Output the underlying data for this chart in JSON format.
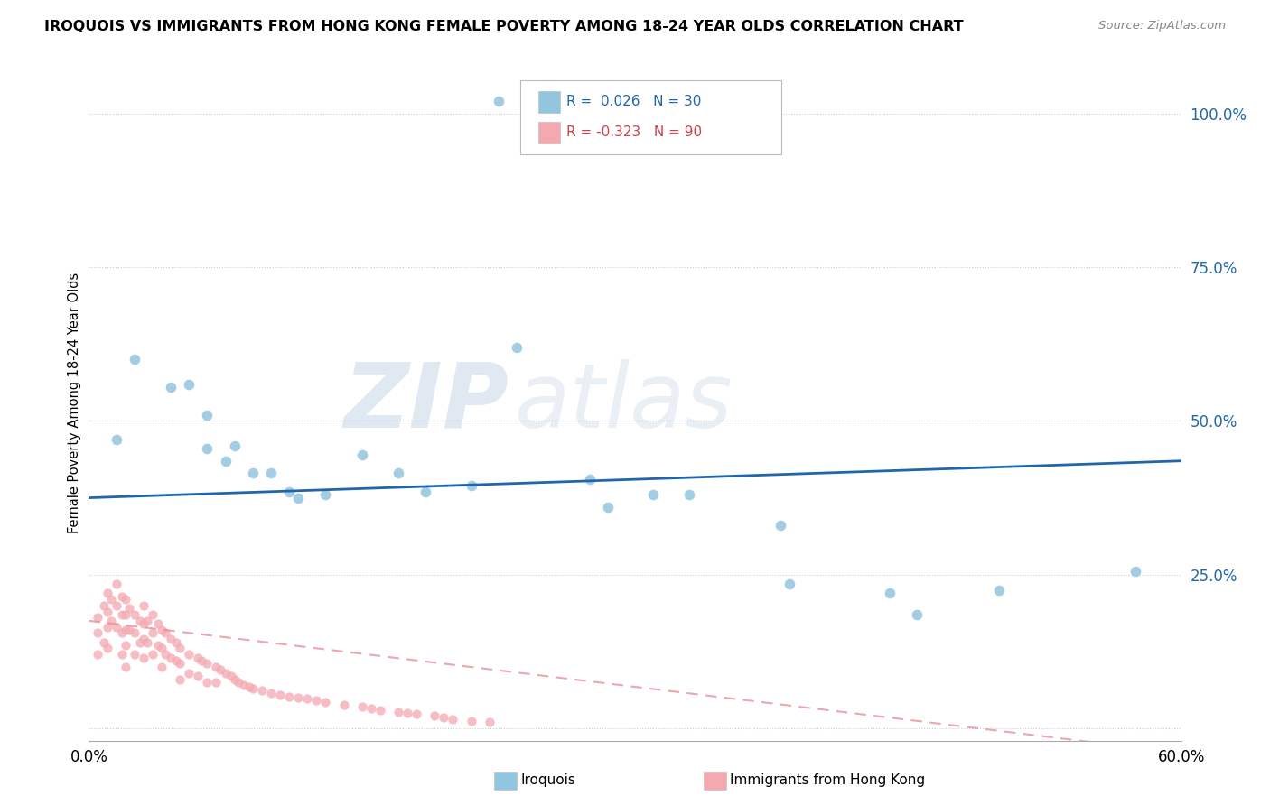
{
  "title": "IROQUOIS VS IMMIGRANTS FROM HONG KONG FEMALE POVERTY AMONG 18-24 YEAR OLDS CORRELATION CHART",
  "source": "Source: ZipAtlas.com",
  "ylabel": "Female Poverty Among 18-24 Year Olds",
  "xlim": [
    0.0,
    0.6
  ],
  "ylim": [
    -0.02,
    1.08
  ],
  "r_iroquois": 0.026,
  "n_iroquois": 30,
  "r_hk": -0.323,
  "n_hk": 90,
  "color_iroquois": "#92c5de",
  "color_hk": "#f4a9b0",
  "color_trend_iroquois": "#2166ac",
  "color_trend_hk": "#e8909a",
  "watermark_zip": "ZIP",
  "watermark_atlas": "atlas",
  "iroquois_x": [
    0.015,
    0.025,
    0.045,
    0.055,
    0.065,
    0.065,
    0.075,
    0.08,
    0.09,
    0.1,
    0.11,
    0.115,
    0.13,
    0.15,
    0.17,
    0.185,
    0.21,
    0.225,
    0.235,
    0.27,
    0.275,
    0.285,
    0.31,
    0.33,
    0.38,
    0.385,
    0.44,
    0.455,
    0.5,
    0.575
  ],
  "iroquois_y": [
    0.47,
    0.6,
    0.555,
    0.56,
    0.51,
    0.455,
    0.435,
    0.46,
    0.415,
    0.415,
    0.385,
    0.375,
    0.38,
    0.445,
    0.415,
    0.385,
    0.395,
    1.02,
    0.62,
    1.0,
    0.405,
    0.36,
    0.38,
    0.38,
    0.33,
    0.235,
    0.22,
    0.185,
    0.225,
    0.255
  ],
  "hk_x": [
    0.005,
    0.005,
    0.005,
    0.008,
    0.008,
    0.01,
    0.01,
    0.01,
    0.01,
    0.012,
    0.012,
    0.015,
    0.015,
    0.015,
    0.018,
    0.018,
    0.018,
    0.018,
    0.02,
    0.02,
    0.02,
    0.02,
    0.02,
    0.022,
    0.022,
    0.025,
    0.025,
    0.025,
    0.028,
    0.028,
    0.03,
    0.03,
    0.03,
    0.03,
    0.032,
    0.032,
    0.035,
    0.035,
    0.035,
    0.038,
    0.038,
    0.04,
    0.04,
    0.04,
    0.042,
    0.042,
    0.045,
    0.045,
    0.048,
    0.048,
    0.05,
    0.05,
    0.05,
    0.055,
    0.055,
    0.06,
    0.06,
    0.062,
    0.065,
    0.065,
    0.07,
    0.07,
    0.072,
    0.075,
    0.078,
    0.08,
    0.082,
    0.085,
    0.088,
    0.09,
    0.095,
    0.1,
    0.105,
    0.11,
    0.115,
    0.12,
    0.125,
    0.13,
    0.14,
    0.15,
    0.155,
    0.16,
    0.17,
    0.175,
    0.18,
    0.19,
    0.195,
    0.2,
    0.21,
    0.22
  ],
  "hk_y": [
    0.18,
    0.155,
    0.12,
    0.2,
    0.14,
    0.22,
    0.19,
    0.165,
    0.13,
    0.21,
    0.175,
    0.235,
    0.2,
    0.165,
    0.215,
    0.185,
    0.155,
    0.12,
    0.21,
    0.185,
    0.16,
    0.135,
    0.1,
    0.195,
    0.16,
    0.185,
    0.155,
    0.12,
    0.175,
    0.14,
    0.2,
    0.17,
    0.145,
    0.115,
    0.175,
    0.14,
    0.185,
    0.155,
    0.12,
    0.17,
    0.135,
    0.16,
    0.13,
    0.1,
    0.155,
    0.12,
    0.145,
    0.115,
    0.14,
    0.11,
    0.13,
    0.105,
    0.08,
    0.12,
    0.09,
    0.115,
    0.085,
    0.11,
    0.105,
    0.075,
    0.1,
    0.075,
    0.095,
    0.09,
    0.085,
    0.08,
    0.075,
    0.07,
    0.068,
    0.065,
    0.062,
    0.058,
    0.055,
    0.052,
    0.05,
    0.048,
    0.045,
    0.042,
    0.038,
    0.035,
    0.032,
    0.03,
    0.027,
    0.025,
    0.023,
    0.02,
    0.018,
    0.015,
    0.012,
    0.01
  ]
}
